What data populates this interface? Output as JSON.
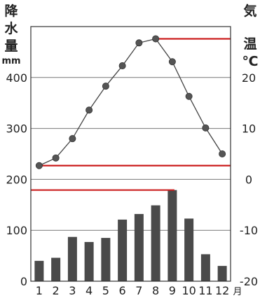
{
  "chart_data": {
    "type": "bar+line",
    "title": "",
    "categories": [
      "1",
      "2",
      "3",
      "4",
      "5",
      "6",
      "7",
      "8",
      "9",
      "10",
      "11",
      "12"
    ],
    "x_unit": "月",
    "left_axis": {
      "label_chars": [
        "降",
        "水",
        "量",
        "mm"
      ],
      "ticks": [
        0,
        100,
        200,
        300,
        400
      ],
      "range": [
        0,
        500
      ]
    },
    "right_axis": {
      "label_chars": [
        "気",
        "温",
        "℃"
      ],
      "ticks": [
        -20,
        -10,
        0,
        10,
        20
      ],
      "range": [
        -20,
        30
      ]
    },
    "precipitation": {
      "axis": "left",
      "values": [
        40,
        46,
        87,
        77,
        85,
        121,
        132,
        149,
        179,
        123,
        53,
        30
      ]
    },
    "temperature": {
      "axis": "right",
      "values": [
        2.7,
        4.2,
        8.0,
        13.6,
        18.3,
        22.3,
        26.8,
        27.6,
        23.1,
        16.3,
        10.1,
        5.0
      ]
    },
    "reference_lines": [
      {
        "axis": "right",
        "value": 27.6,
        "from": "8",
        "to": "end"
      },
      {
        "axis": "right",
        "value": 2.7,
        "from": "1",
        "to": "end"
      },
      {
        "axis": "left",
        "value": 179,
        "from": "start",
        "to": "9"
      }
    ],
    "colors": {
      "bar": "#4a4a4a",
      "line": "#444444",
      "marker": "#555555",
      "reference": "#cc1f1f",
      "grid": "#777777",
      "frame": "#333333"
    }
  }
}
